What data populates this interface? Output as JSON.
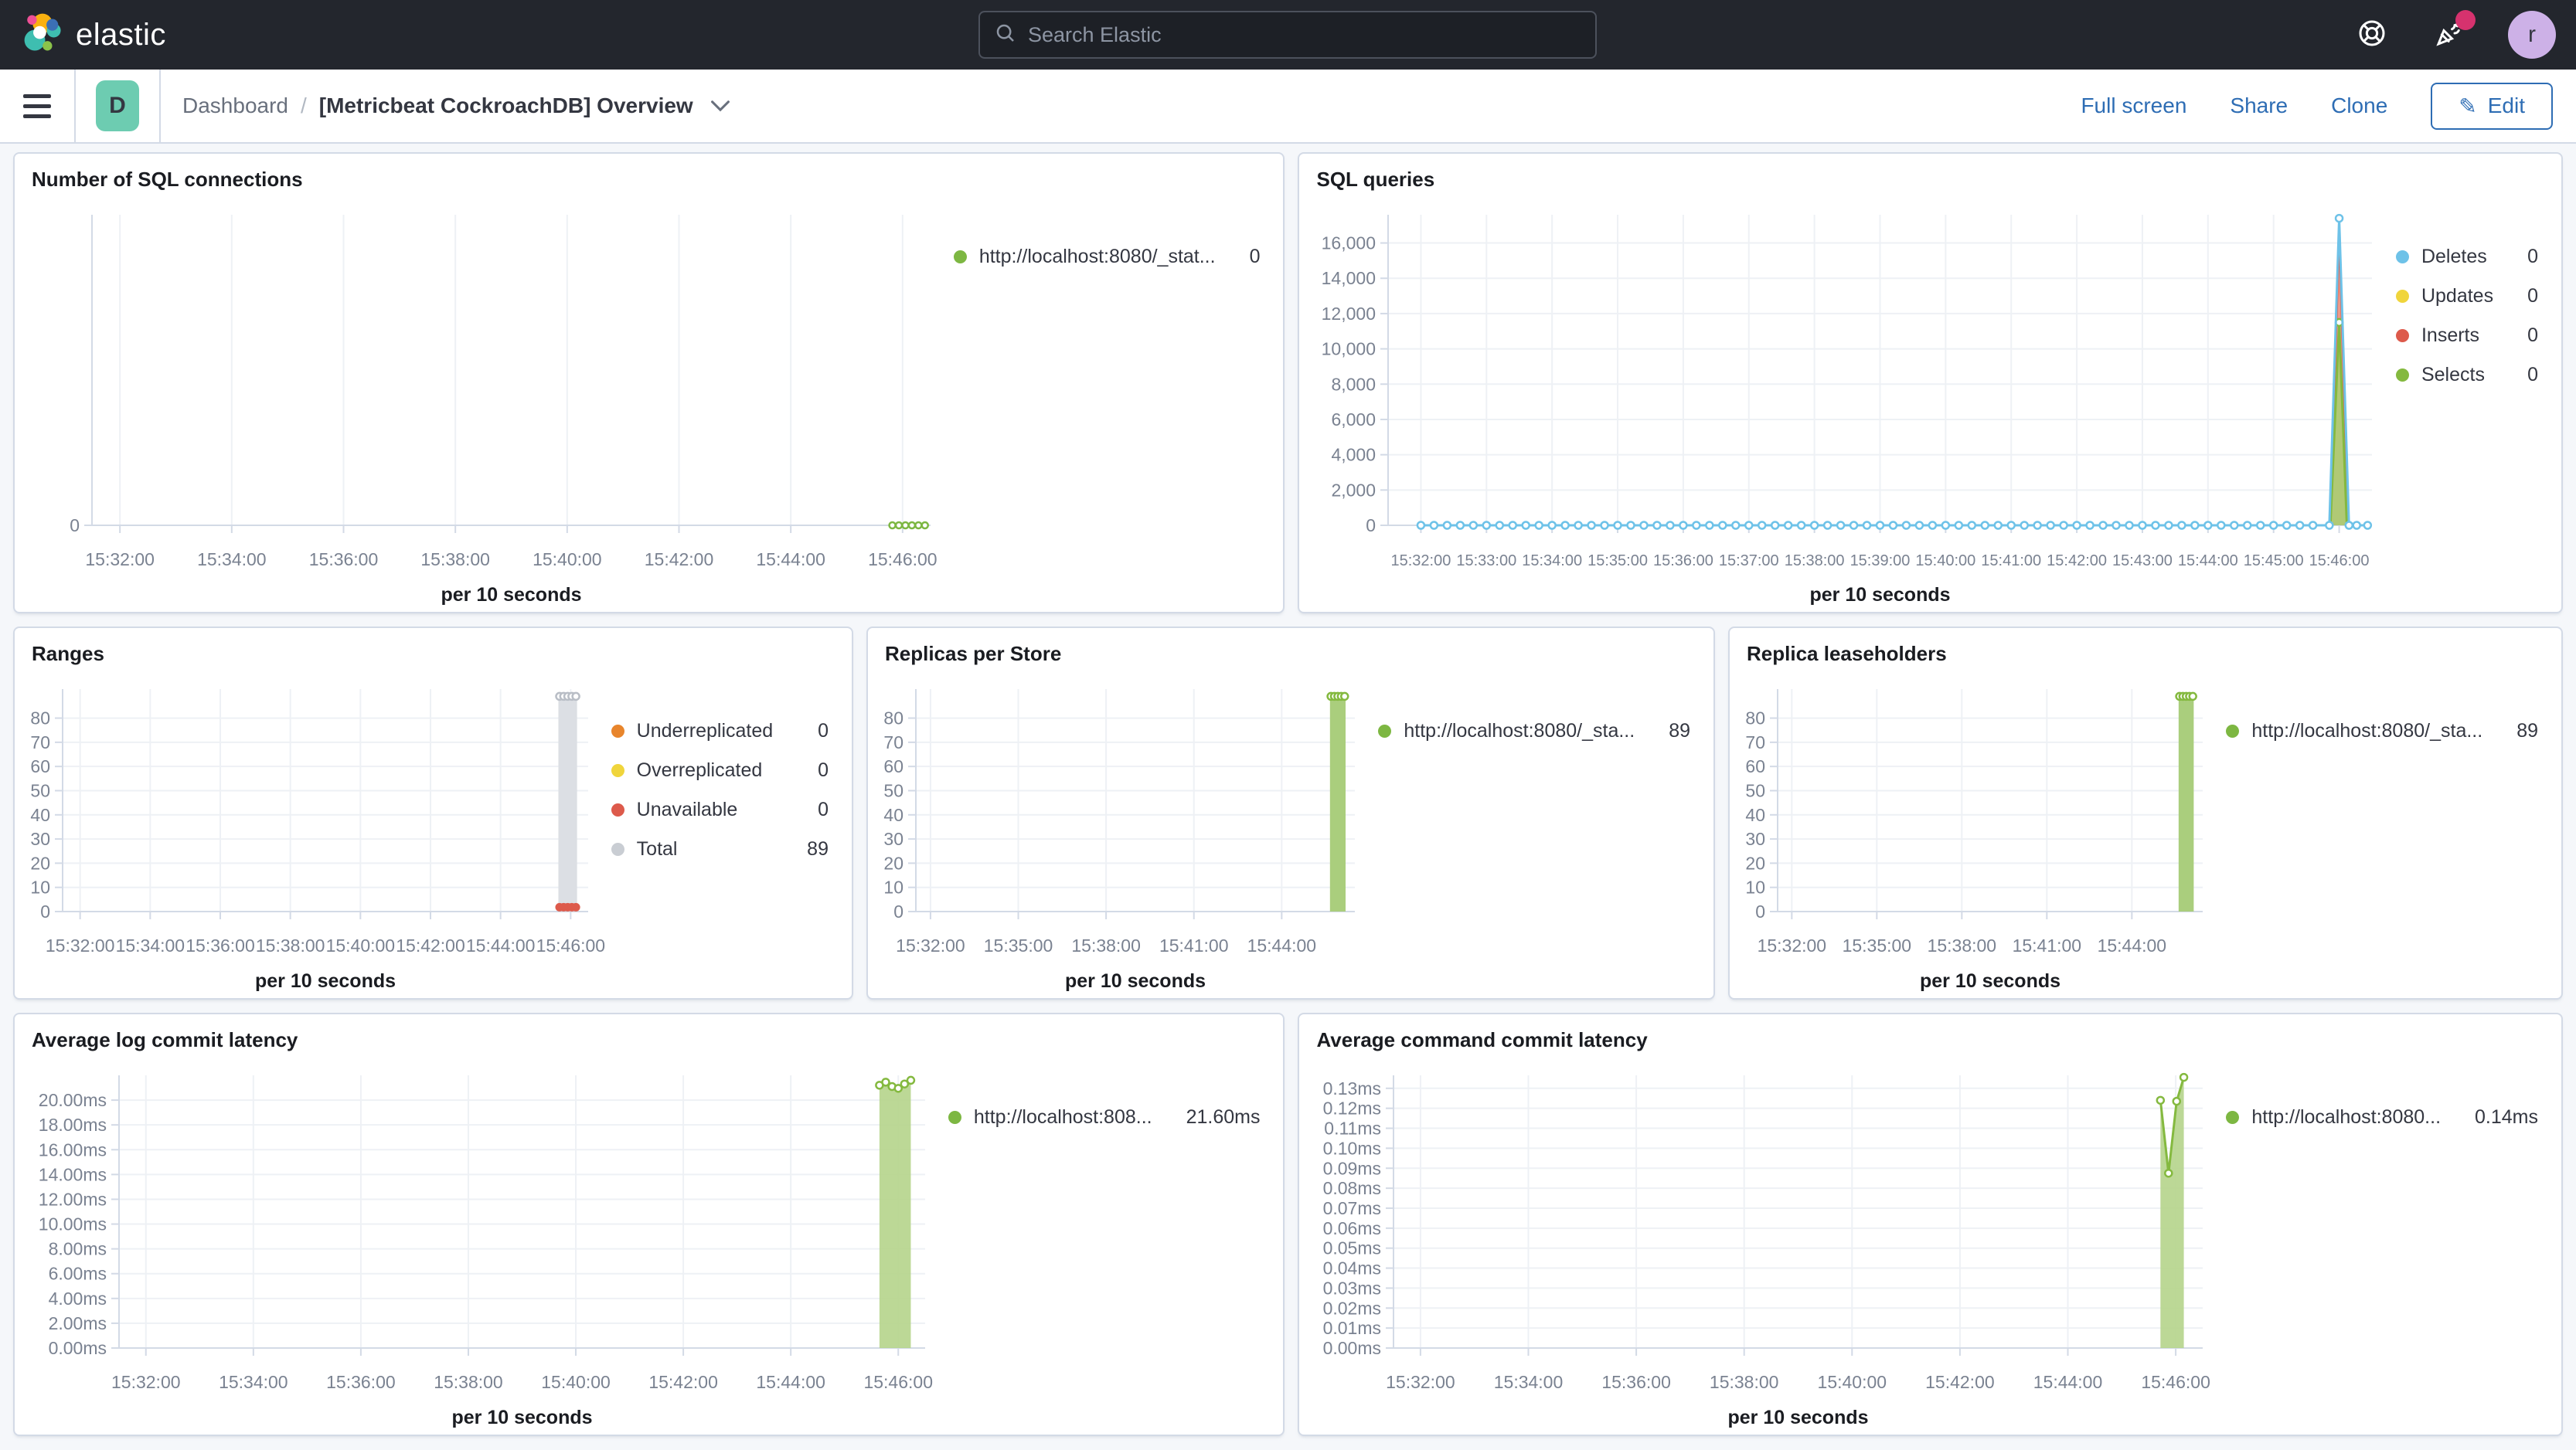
{
  "topbar": {
    "brand": "elastic",
    "search_placeholder": "Search Elastic",
    "avatar_initial": "r"
  },
  "navbar": {
    "app_badge": "D",
    "breadcrumb_root": "Dashboard",
    "separator": "/",
    "title": "[Metricbeat CockroachDB] Overview",
    "actions": {
      "full_screen": "Full screen",
      "share": "Share",
      "clone": "Clone",
      "edit": "Edit"
    }
  },
  "colors": {
    "green": "#7db742",
    "light_green_fill": "#aace7d",
    "blue": "#6ec2e8",
    "yellow": "#f0d53c",
    "red": "#dd5a4b",
    "orange": "#e8852c",
    "gray": "#c9cdd3",
    "link_blue": "#2e6db4",
    "notification_pink": "#d6326e"
  },
  "panels": [
    {
      "title": "Number of SQL connections",
      "legend": [
        {
          "label": "http://localhost:8080/_stat...",
          "value": "0",
          "color": "#7db742"
        }
      ],
      "chart_data": {
        "type": "area",
        "ylim": [
          0,
          1
        ],
        "yticks": [
          {
            "v": 0,
            "label": "0"
          }
        ],
        "xticks": [
          {
            "t": 30,
            "label": "15:32:00"
          },
          {
            "t": 150,
            "label": "15:34:00"
          },
          {
            "t": 270,
            "label": "15:36:00"
          },
          {
            "t": 390,
            "label": "15:38:00"
          },
          {
            "t": 510,
            "label": "15:40:00"
          },
          {
            "t": 630,
            "label": "15:42:00"
          },
          {
            "t": 750,
            "label": "15:44:00"
          },
          {
            "t": 870,
            "label": "15:46:00"
          }
        ],
        "xaxis_label": "per 10 seconds",
        "series": [
          {
            "name": "http://localhost:8080/_stat...",
            "color": "#7db742",
            "width": 2.5,
            "marker": "open",
            "markerR": 4,
            "parts": [
              {
                "gen": {
                  "from": 859,
                  "to": 894,
                  "step": 7,
                  "v": 0
                }
              }
            ]
          }
        ]
      }
    },
    {
      "title": "SQL queries",
      "legend": [
        {
          "label": "Deletes",
          "value": "0",
          "color": "#6ec2e8"
        },
        {
          "label": "Updates",
          "value": "0",
          "color": "#f0d53c"
        },
        {
          "label": "Inserts",
          "value": "0",
          "color": "#dd5a4b"
        },
        {
          "label": "Selects",
          "value": "0",
          "color": "#84b93f"
        }
      ],
      "chart_data": {
        "type": "area",
        "ylim": [
          0,
          17600
        ],
        "xtick_font": 20,
        "yticks": [
          {
            "v": 0,
            "label": "0"
          },
          {
            "v": 2000,
            "label": "2,000"
          },
          {
            "v": 4000,
            "label": "4,000"
          },
          {
            "v": 6000,
            "label": "6,000"
          },
          {
            "v": 8000,
            "label": "8,000"
          },
          {
            "v": 10000,
            "label": "10,000"
          },
          {
            "v": 12000,
            "label": "12,000"
          },
          {
            "v": 14000,
            "label": "14,000"
          },
          {
            "v": 16000,
            "label": "16,000"
          }
        ],
        "xticks": [
          {
            "t": 30,
            "label": "15:32:00"
          },
          {
            "t": 90,
            "label": "15:33:00"
          },
          {
            "t": 150,
            "label": "15:34:00"
          },
          {
            "t": 210,
            "label": "15:35:00"
          },
          {
            "t": 270,
            "label": "15:36:00"
          },
          {
            "t": 330,
            "label": "15:37:00"
          },
          {
            "t": 390,
            "label": "15:38:00"
          },
          {
            "t": 450,
            "label": "15:39:00"
          },
          {
            "t": 510,
            "label": "15:40:00"
          },
          {
            "t": 570,
            "label": "15:41:00"
          },
          {
            "t": 630,
            "label": "15:42:00"
          },
          {
            "t": 690,
            "label": "15:43:00"
          },
          {
            "t": 750,
            "label": "15:44:00"
          },
          {
            "t": 810,
            "label": "15:45:00"
          },
          {
            "t": 870,
            "label": "15:46:00"
          }
        ],
        "xaxis_label": "per 10 seconds",
        "series": [
          {
            "name": "Inserts",
            "color": "#dd5a4b",
            "width": 3,
            "fill": "#ea8a77",
            "fillOpacity": 0.85,
            "parts": [
              {
                "pts": [
                  [
                    861.5,
                    0
                  ],
                  [
                    870,
                    16700
                  ],
                  [
                    878.5,
                    0
                  ]
                ]
              }
            ]
          },
          {
            "name": "Selects",
            "color": "#84b93f",
            "width": 3,
            "fill": "#a8ce72",
            "fillOpacity": 0.9,
            "marker": "open",
            "markerOn": "peak",
            "markerR": 4.5,
            "parts": [
              {
                "pts": [
                  [
                    862,
                    0
                  ],
                  [
                    870,
                    11500
                  ],
                  [
                    877,
                    0
                  ]
                ]
              }
            ]
          },
          {
            "name": "Deletes",
            "color": "#6ec2e8",
            "width": 3,
            "marker": "open",
            "markerR": 4.5,
            "parts": [
              {
                "gen": {
                  "from": 30,
                  "to": 852,
                  "step": 12,
                  "v": 0
                }
              },
              {
                "pts": [
                  [
                    861,
                    0
                  ],
                  [
                    870,
                    17400
                  ],
                  [
                    879,
                    0
                  ]
                ]
              },
              {
                "gen": {
                  "from": 886,
                  "to": 896,
                  "step": 10,
                  "v": 0
                }
              }
            ]
          }
        ]
      }
    },
    {
      "title": "Ranges",
      "legend": [
        {
          "label": "Underreplicated",
          "value": "0",
          "color": "#e8852c"
        },
        {
          "label": "Overreplicated",
          "value": "0",
          "color": "#f0d53c"
        },
        {
          "label": "Unavailable",
          "value": "0",
          "color": "#dd5a4b"
        },
        {
          "label": "Total",
          "value": "89",
          "color": "#c9cdd3"
        }
      ],
      "chart_data": {
        "type": "bar",
        "ylim": [
          0,
          92
        ],
        "yticks": [
          {
            "v": 0,
            "label": "0"
          },
          {
            "v": 10,
            "label": "10"
          },
          {
            "v": 20,
            "label": "20"
          },
          {
            "v": 30,
            "label": "30"
          },
          {
            "v": 40,
            "label": "40"
          },
          {
            "v": 50,
            "label": "50"
          },
          {
            "v": 60,
            "label": "60"
          },
          {
            "v": 70,
            "label": "70"
          },
          {
            "v": 80,
            "label": "80"
          }
        ],
        "xticks": [
          {
            "t": 30,
            "label": "15:32:00"
          },
          {
            "t": 150,
            "label": "15:34:00"
          },
          {
            "t": 270,
            "label": "15:36:00"
          },
          {
            "t": 390,
            "label": "15:38:00"
          },
          {
            "t": 510,
            "label": "15:40:00"
          },
          {
            "t": 630,
            "label": "15:42:00"
          },
          {
            "t": 750,
            "label": "15:44:00"
          },
          {
            "t": 870,
            "label": "15:46:00"
          }
        ],
        "xaxis_label": "per 10 seconds",
        "series": [
          {
            "type": "vbar",
            "name": "Total",
            "from": 849,
            "to": 881,
            "top": 89,
            "fill": "#dcdfe4",
            "topMarkers": {
              "ts": [
                851,
                858,
                865,
                872,
                879
              ],
              "color": "#b9bec6",
              "r": 4.5
            }
          },
          {
            "type": "dots",
            "name": "Unavailable",
            "color": "#dd5a4b",
            "r": 5.5,
            "pts": [
              [
                851,
                1.8
              ],
              [
                858,
                1.8
              ],
              [
                865,
                1.8
              ],
              [
                872,
                1.8
              ],
              [
                879,
                1.8
              ]
            ]
          }
        ]
      }
    },
    {
      "title": "Replicas per Store",
      "legend": [
        {
          "label": "http://localhost:8080/_sta...",
          "value": "89",
          "color": "#7db742"
        }
      ],
      "chart_data": {
        "type": "bar",
        "ylim": [
          0,
          92
        ],
        "yticks": [
          {
            "v": 0,
            "label": "0"
          },
          {
            "v": 10,
            "label": "10"
          },
          {
            "v": 20,
            "label": "20"
          },
          {
            "v": 30,
            "label": "30"
          },
          {
            "v": 40,
            "label": "40"
          },
          {
            "v": 50,
            "label": "50"
          },
          {
            "v": 60,
            "label": "60"
          },
          {
            "v": 70,
            "label": "70"
          },
          {
            "v": 80,
            "label": "80"
          }
        ],
        "xticks": [
          {
            "t": 30,
            "label": "15:32:00"
          },
          {
            "t": 210,
            "label": "15:35:00"
          },
          {
            "t": 390,
            "label": "15:38:00"
          },
          {
            "t": 570,
            "label": "15:41:00"
          },
          {
            "t": 750,
            "label": "15:44:00"
          }
        ],
        "xaxis_label": "per 10 seconds",
        "series": [
          {
            "type": "vbar",
            "name": "http://localhost:8080/_sta...",
            "from": 849,
            "to": 881,
            "top": 89,
            "fill": "#aace7d",
            "topMarkers": {
              "ts": [
                851,
                858,
                865,
                872,
                879
              ],
              "color": "#84b93f",
              "r": 4.5
            }
          }
        ]
      }
    },
    {
      "title": "Replica leaseholders",
      "legend": [
        {
          "label": "http://localhost:8080/_sta...",
          "value": "89",
          "color": "#7db742"
        }
      ],
      "chart_data": {
        "type": "bar",
        "ylim": [
          0,
          92
        ],
        "yticks": [
          {
            "v": 0,
            "label": "0"
          },
          {
            "v": 10,
            "label": "10"
          },
          {
            "v": 20,
            "label": "20"
          },
          {
            "v": 30,
            "label": "30"
          },
          {
            "v": 40,
            "label": "40"
          },
          {
            "v": 50,
            "label": "50"
          },
          {
            "v": 60,
            "label": "60"
          },
          {
            "v": 70,
            "label": "70"
          },
          {
            "v": 80,
            "label": "80"
          }
        ],
        "xticks": [
          {
            "t": 30,
            "label": "15:32:00"
          },
          {
            "t": 210,
            "label": "15:35:00"
          },
          {
            "t": 390,
            "label": "15:38:00"
          },
          {
            "t": 570,
            "label": "15:41:00"
          },
          {
            "t": 750,
            "label": "15:44:00"
          }
        ],
        "xaxis_label": "per 10 seconds",
        "series": [
          {
            "type": "vbar",
            "name": "http://localhost:8080/_sta...",
            "from": 849,
            "to": 881,
            "top": 89,
            "fill": "#aace7d",
            "topMarkers": {
              "ts": [
                851,
                858,
                865,
                872,
                879
              ],
              "color": "#84b93f",
              "r": 4.5
            }
          }
        ]
      }
    },
    {
      "title": "Average log commit latency",
      "legend": [
        {
          "label": "http://localhost:808...",
          "value": "21.60ms",
          "color": "#7db742"
        }
      ],
      "chart_data": {
        "type": "area",
        "ylim": [
          0,
          22
        ],
        "yticks": [
          {
            "v": 0,
            "label": "0.00ms"
          },
          {
            "v": 2,
            "label": "2.00ms"
          },
          {
            "v": 4,
            "label": "4.00ms"
          },
          {
            "v": 6,
            "label": "6.00ms"
          },
          {
            "v": 8,
            "label": "8.00ms"
          },
          {
            "v": 10,
            "label": "10.00ms"
          },
          {
            "v": 12,
            "label": "12.00ms"
          },
          {
            "v": 14,
            "label": "14.00ms"
          },
          {
            "v": 16,
            "label": "16.00ms"
          },
          {
            "v": 18,
            "label": "18.00ms"
          },
          {
            "v": 20,
            "label": "20.00ms"
          }
        ],
        "xticks": [
          {
            "t": 30,
            "label": "15:32:00"
          },
          {
            "t": 150,
            "label": "15:34:00"
          },
          {
            "t": 270,
            "label": "15:36:00"
          },
          {
            "t": 390,
            "label": "15:38:00"
          },
          {
            "t": 510,
            "label": "15:40:00"
          },
          {
            "t": 630,
            "label": "15:42:00"
          },
          {
            "t": 750,
            "label": "15:44:00"
          },
          {
            "t": 870,
            "label": "15:46:00"
          }
        ],
        "xaxis_label": "per 10 seconds",
        "series": [
          {
            "name": "http://localhost:808...",
            "color": "#84b93f",
            "width": 3,
            "fill": "#b5d48b",
            "fillOpacity": 0.9,
            "marker": "open",
            "markerR": 4.5,
            "parts": [
              {
                "pts": [
                  [
                    849,
                    21.2
                  ],
                  [
                    856,
                    21.45
                  ],
                  [
                    863,
                    21.1
                  ],
                  [
                    870,
                    20.95
                  ],
                  [
                    877,
                    21.3
                  ],
                  [
                    884,
                    21.6
                  ]
                ]
              }
            ]
          }
        ]
      }
    },
    {
      "title": "Average command commit latency",
      "legend": [
        {
          "label": "http://localhost:8080...",
          "value": "0.14ms",
          "color": "#7db742"
        }
      ],
      "chart_data": {
        "type": "area",
        "ylim": [
          0,
          0.1365
        ],
        "yticks": [
          {
            "v": 0,
            "label": "0.00ms"
          },
          {
            "v": 0.01,
            "label": "0.01ms"
          },
          {
            "v": 0.02,
            "label": "0.02ms"
          },
          {
            "v": 0.03,
            "label": "0.03ms"
          },
          {
            "v": 0.04,
            "label": "0.04ms"
          },
          {
            "v": 0.05,
            "label": "0.05ms"
          },
          {
            "v": 0.06,
            "label": "0.06ms"
          },
          {
            "v": 0.07,
            "label": "0.07ms"
          },
          {
            "v": 0.08,
            "label": "0.08ms"
          },
          {
            "v": 0.09,
            "label": "0.09ms"
          },
          {
            "v": 0.1,
            "label": "0.10ms"
          },
          {
            "v": 0.11,
            "label": "0.11ms"
          },
          {
            "v": 0.12,
            "label": "0.12ms"
          },
          {
            "v": 0.13,
            "label": "0.13ms"
          }
        ],
        "xticks": [
          {
            "t": 30,
            "label": "15:32:00"
          },
          {
            "t": 150,
            "label": "15:34:00"
          },
          {
            "t": 270,
            "label": "15:36:00"
          },
          {
            "t": 390,
            "label": "15:38:00"
          },
          {
            "t": 510,
            "label": "15:40:00"
          },
          {
            "t": 630,
            "label": "15:42:00"
          },
          {
            "t": 750,
            "label": "15:44:00"
          },
          {
            "t": 870,
            "label": "15:46:00"
          }
        ],
        "xaxis_label": "per 10 seconds",
        "series": [
          {
            "name": "http://localhost:8080...",
            "color": "#84b93f",
            "width": 3,
            "fill": "#b5d48b",
            "fillOpacity": 0.9,
            "marker": "open",
            "markerR": 4.5,
            "parts": [
              {
                "pts": [
                  [
                    853,
                    0.124
                  ],
                  [
                    862,
                    0.0875
                  ],
                  [
                    871,
                    0.1235
                  ],
                  [
                    879,
                    0.1355
                  ]
                ]
              }
            ]
          }
        ]
      }
    }
  ]
}
